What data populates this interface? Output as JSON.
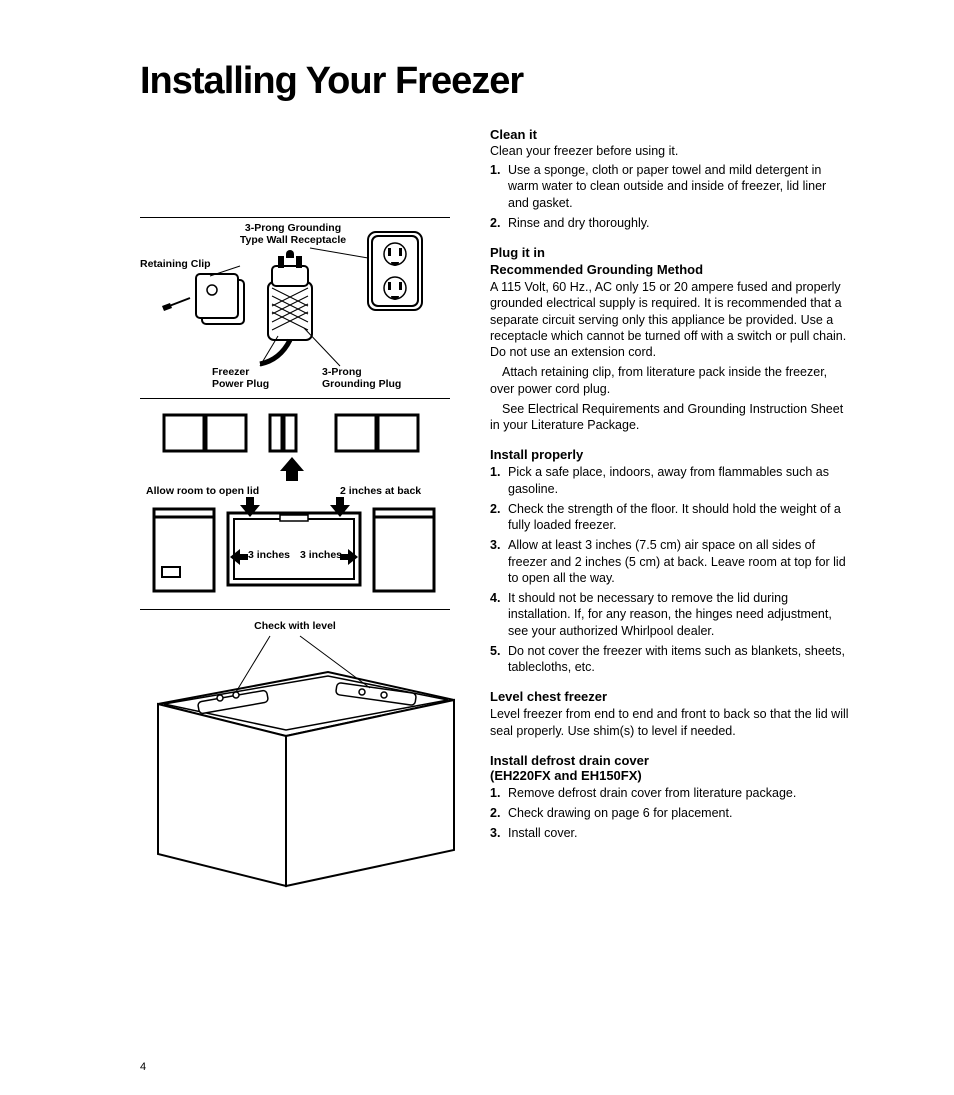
{
  "title": "Installing Your Freezer",
  "page_number": "4",
  "colors": {
    "text": "#000000",
    "bg": "#ffffff",
    "line": "#000000"
  },
  "fonts": {
    "title_size": 38,
    "title_weight": 900,
    "body_size": 12.5,
    "heading_size": 13,
    "label_size": 10.5
  },
  "figures": {
    "fig1": {
      "labels": {
        "top_center": "3-Prong Grounding\nType Wall Receptacle",
        "left": "Retaining Clip",
        "bottom_left": "Freezer\nPower Plug",
        "bottom_right": "3-Prong\nGrounding Plug"
      }
    },
    "fig2": {
      "labels": {
        "left_mid": "Allow room to open lid",
        "right_mid": "2 inches at back",
        "inner_left": "3 inches",
        "inner_right": "3 inches"
      }
    },
    "fig3": {
      "label": "Check with level"
    }
  },
  "sections": [
    {
      "heading": "Clean it",
      "intro": "Clean your freezer before using it.",
      "steps": [
        "Use a sponge, cloth or paper towel and mild detergent in warm water to clean outside and inside of freezer, lid liner and gasket.",
        "Rinse and dry thoroughly."
      ]
    },
    {
      "heading": "Plug it in",
      "subheading": "Recommended Grounding Method",
      "paras": [
        "A 115 Volt, 60 Hz., AC only 15 or 20 ampere fused and properly grounded electrical supply is required. It is recommended that a separate circuit serving only this appliance be provided. Use a receptacle which cannot be turned off with a switch or pull chain. Do not use an extension cord.",
        "Attach retaining clip, from literature pack inside the freezer, over power cord plug.",
        "See Electrical Requirements and Grounding Instruction Sheet in your Literature Package."
      ]
    },
    {
      "heading": "Install properly",
      "steps": [
        "Pick a safe place, indoors, away from flammables such as gasoline.",
        "Check the strength of the floor. It should hold the weight of a fully loaded freezer.",
        "Allow at least 3 inches (7.5 cm) air space on all sides of freezer and 2 inches (5 cm) at back. Leave room at top for lid to open all the way.",
        "It should not be necessary to remove the lid during installation. If, for any reason, the hinges need adjustment, see your authorized Whirlpool dealer.",
        "Do not cover the freezer with items such as blankets, sheets, tablecloths, etc."
      ]
    },
    {
      "heading": "Level chest freezer",
      "paras": [
        "Level freezer from end to end and front to back so that the lid will seal properly. Use shim(s) to level if needed."
      ]
    },
    {
      "heading": "Install defrost drain cover\n(EH220FX and EH150FX)",
      "steps": [
        "Remove defrost drain cover from literature package.",
        "Check drawing on page 6 for placement.",
        "Install cover."
      ]
    }
  ]
}
